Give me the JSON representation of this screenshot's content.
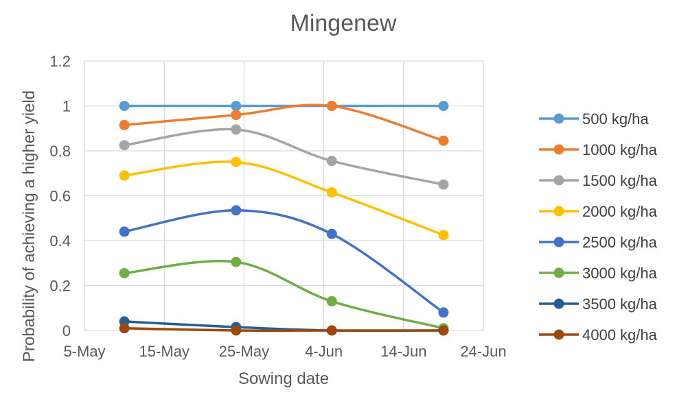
{
  "chart_data": {
    "type": "line",
    "title": "Mingenew",
    "xlabel": "Sowing date",
    "ylabel": "Probability of achieving a higher yield",
    "x_ticks": [
      "5-May",
      "15-May",
      "25-May",
      "4-Jun",
      "14-Jun",
      "24-Jun"
    ],
    "y_ticks": [
      "0",
      "0.2",
      "0.4",
      "0.6",
      "0.8",
      "1",
      "1.2"
    ],
    "xlim": [
      "5-May",
      "24-Jun"
    ],
    "ylim": [
      0,
      1.2
    ],
    "x": [
      "10-May",
      "24-May",
      "5-Jun",
      "19-Jun"
    ],
    "grid": true,
    "legend_position": "right",
    "smooth": true,
    "series": [
      {
        "name": "500 kg/ha",
        "color": "#5B9BD5",
        "values": [
          1.0,
          1.0,
          1.0,
          1.0
        ]
      },
      {
        "name": "1000 kg/ha",
        "color": "#ED7D31",
        "values": [
          0.915,
          0.96,
          1.0,
          0.845
        ]
      },
      {
        "name": "1500 kg/ha",
        "color": "#A5A5A5",
        "values": [
          0.825,
          0.895,
          0.755,
          0.65
        ]
      },
      {
        "name": "2000 kg/ha",
        "color": "#FFC000",
        "values": [
          0.69,
          0.75,
          0.615,
          0.425
        ]
      },
      {
        "name": "2500 kg/ha",
        "color": "#4472C4",
        "values": [
          0.44,
          0.535,
          0.43,
          0.08
        ]
      },
      {
        "name": "3000 kg/ha",
        "color": "#70AD47",
        "values": [
          0.255,
          0.305,
          0.13,
          0.01
        ]
      },
      {
        "name": "3500 kg/ha",
        "color": "#255E91",
        "values": [
          0.04,
          0.015,
          0.0,
          0.0
        ]
      },
      {
        "name": "4000  kg/ha",
        "color": "#9E480E",
        "values": [
          0.01,
          0.0,
          0.0,
          0.0
        ]
      }
    ]
  }
}
